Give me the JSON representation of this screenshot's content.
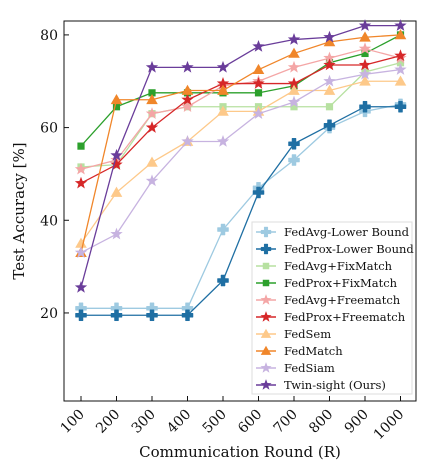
{
  "chart_data": {
    "type": "line",
    "xlabel": "Communication Round (R)",
    "ylabel": "Test Accuracy [%]",
    "x": [
      100,
      200,
      300,
      400,
      500,
      600,
      700,
      800,
      900,
      1000
    ],
    "x_tick_labels": [
      "100",
      "200",
      "300",
      "400",
      "500",
      "600",
      "700",
      "800",
      "900",
      "1000"
    ],
    "y_ticks": [
      20,
      40,
      60,
      80
    ],
    "ylim": [
      1,
      83
    ],
    "grid": false,
    "legend_position": "bottom-right",
    "series": [
      {
        "name": "FedAvg-Lower Bound",
        "color": "#9ecae1",
        "marker": "plus",
        "values": [
          21,
          21,
          21,
          21,
          38,
          47,
          53,
          60,
          63.5,
          65
        ]
      },
      {
        "name": "FedProx-Lower Bound",
        "color": "#1f6fa3",
        "marker": "plus",
        "values": [
          19.5,
          19.5,
          19.5,
          19.5,
          27,
          46,
          56.5,
          60.5,
          64.5,
          64.5
        ]
      },
      {
        "name": "FedAvg+FixMatch",
        "color": "#b7e1a1",
        "marker": "square",
        "values": [
          51.5,
          52,
          63,
          64.5,
          64.5,
          64.5,
          64.5,
          64.5,
          72,
          74
        ]
      },
      {
        "name": "FedProx+FixMatch",
        "color": "#2ca02c",
        "marker": "square",
        "values": [
          56,
          64.5,
          67.5,
          67.5,
          67.5,
          67.5,
          69,
          74,
          76,
          80
        ]
      },
      {
        "name": "FedAvg+Freematch",
        "color": "#f4a6a6",
        "marker": "star",
        "values": [
          51,
          53,
          63,
          64.5,
          69,
          70,
          73,
          75,
          77,
          75
        ]
      },
      {
        "name": "FedProx+Freematch",
        "color": "#d62728",
        "marker": "star",
        "values": [
          48,
          52,
          60,
          66,
          69.5,
          69.5,
          69.5,
          73.5,
          73.5,
          75.5
        ]
      },
      {
        "name": "FedSem",
        "color": "#fdc98a",
        "marker": "triangle",
        "values": [
          35,
          46,
          52.5,
          57,
          63.5,
          63.5,
          68,
          68,
          70,
          70
        ]
      },
      {
        "name": "FedMatch",
        "color": "#f0862a",
        "marker": "triangle",
        "values": [
          33,
          66,
          66,
          68,
          68,
          72.5,
          76,
          78.5,
          79.5,
          80
        ]
      },
      {
        "name": "FedSiam",
        "color": "#c7b3e0",
        "marker": "star",
        "values": [
          33,
          37,
          48.5,
          57,
          57,
          63,
          65.5,
          70,
          71.5,
          72.5
        ]
      },
      {
        "name": "Twin-sight (Ours)",
        "color": "#6a3d9a",
        "marker": "star",
        "values": [
          25.5,
          54,
          73,
          73,
          73,
          77.5,
          79,
          79.5,
          82,
          82
        ]
      }
    ]
  }
}
